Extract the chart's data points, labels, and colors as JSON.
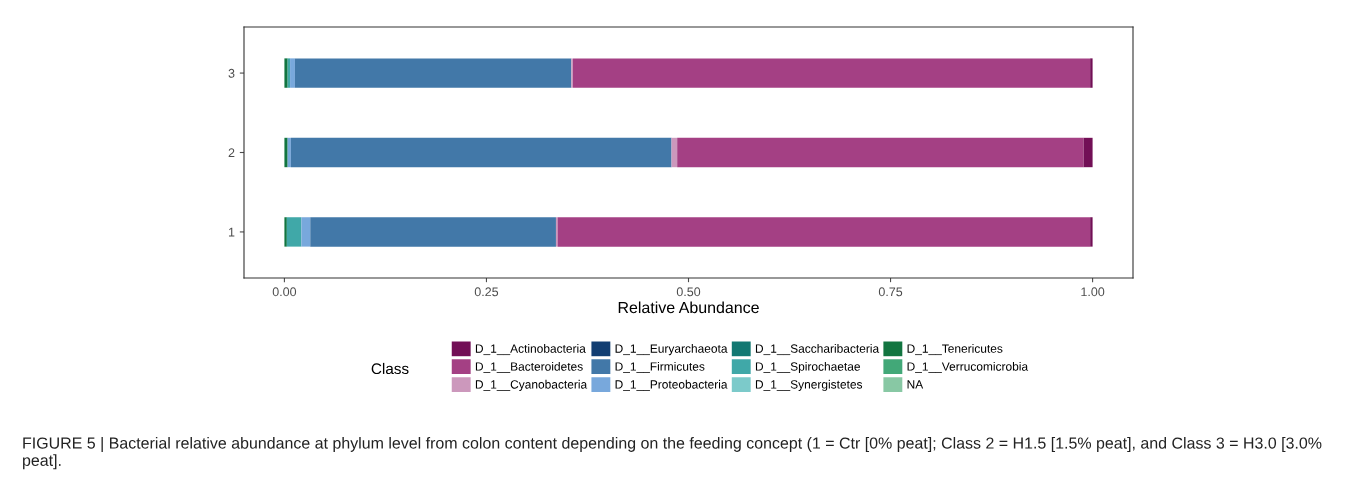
{
  "chart_data": {
    "type": "bar",
    "orientation": "horizontal",
    "stacked": true,
    "xlabel": "Relative Abundance",
    "legend_title": "Class",
    "legend": "bottom",
    "grid": false,
    "categories": [
      "3",
      "2",
      "1"
    ],
    "xlim": [
      -0.05,
      1.05
    ],
    "xticks": [
      {
        "value": 0,
        "label": "0.00"
      },
      {
        "value": 0.25,
        "label": "0.25"
      },
      {
        "value": 0.5,
        "label": "0.50"
      },
      {
        "value": 0.75,
        "label": "0.75"
      },
      {
        "value": 1,
        "label": "1.00"
      }
    ],
    "series": [
      {
        "name": "NA",
        "color": "#88c8a4",
        "values": [
          0,
          0,
          0
        ]
      },
      {
        "name": "D_1__Verrucomicrobia",
        "color": "#42a878",
        "values": [
          0,
          0,
          0
        ]
      },
      {
        "name": "D_1__Tenericutes",
        "color": "#127540",
        "values": [
          0.004,
          0.004,
          0.003
        ]
      },
      {
        "name": "D_1__Synergistetes",
        "color": "#7ccaca",
        "values": [
          0,
          0,
          0
        ]
      },
      {
        "name": "D_1__Spirochaetae",
        "color": "#40a8a8",
        "values": [
          0.003,
          0,
          0.018
        ]
      },
      {
        "name": "D_1__Saccharibacteria",
        "color": "#127872",
        "values": [
          0,
          0,
          0
        ]
      },
      {
        "name": "D_1__Proteobacteria",
        "color": "#78a8dc",
        "values": [
          0.006,
          0.004,
          0.011
        ]
      },
      {
        "name": "D_1__Firmicutes",
        "color": "#4278a8",
        "values": [
          0.342,
          0.471,
          0.304
        ]
      },
      {
        "name": "D_1__Euryarchaeota",
        "color": "#123e72",
        "values": [
          0,
          0,
          0
        ]
      },
      {
        "name": "D_1__Cyanobacteria",
        "color": "#cc98bc",
        "values": [
          0.002,
          0.007,
          0.002
        ]
      },
      {
        "name": "D_1__Bacteroidetes",
        "color": "#a44084",
        "values": [
          0.64,
          0.503,
          0.659
        ]
      },
      {
        "name": "D_1__Actinobacteria",
        "color": "#720f56",
        "values": [
          0.003,
          0.011,
          0.003
        ]
      }
    ],
    "annotations": [
      "FIGURE 5 | Bacterial relative abundance at phylum level from colon content depending on the feeding concept (1 = Ctr [0% peat]; Class 2 = H1.5 [1.5% peat], and Class 3 = H3.0 [3.0% peat]."
    ]
  }
}
